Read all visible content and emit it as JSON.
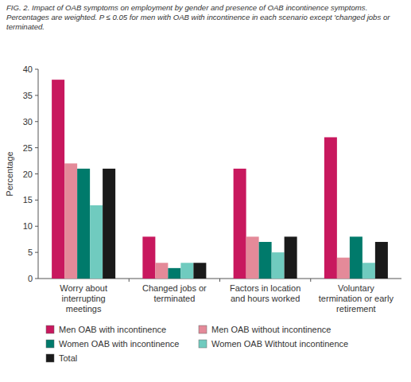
{
  "chart_data": {
    "type": "bar",
    "title": "FIG. 2. Impact of OAB symptoms on employment by gender and presence of OAB incontinence symptoms. Percentages are weighted. P ≤ 0.05 for men with OAB with incontinence in each scenario except 'changed jobs or terminated.",
    "ylabel": "Percentage",
    "categories": [
      "Worry about interrupting meetings",
      "Changed jobs or terminated",
      "Factors in location and hours worked",
      "Voluntary termination or early retirement"
    ],
    "series": [
      {
        "name": "Men OAB with incontinence",
        "color": "#c8185e",
        "values": [
          38,
          8,
          21,
          27
        ]
      },
      {
        "name": "Men OAB without incontinence",
        "color": "#e48a99",
        "values": [
          22,
          3,
          8,
          4
        ]
      },
      {
        "name": "Women OAB with incontinence",
        "color": "#007a6b",
        "values": [
          21,
          2,
          7,
          8
        ]
      },
      {
        "name": "Women OAB Withtout incontinence",
        "color": "#70cbbf",
        "values": [
          14,
          3,
          5,
          3
        ]
      },
      {
        "name": "Total",
        "color": "#1a1a1a",
        "values": [
          21,
          3,
          8,
          7
        ]
      }
    ],
    "ylim": [
      0,
      40
    ],
    "yticks": [
      0,
      5,
      10,
      15,
      20,
      25,
      30,
      35,
      40
    ],
    "grid": false,
    "legend": "bottom"
  }
}
